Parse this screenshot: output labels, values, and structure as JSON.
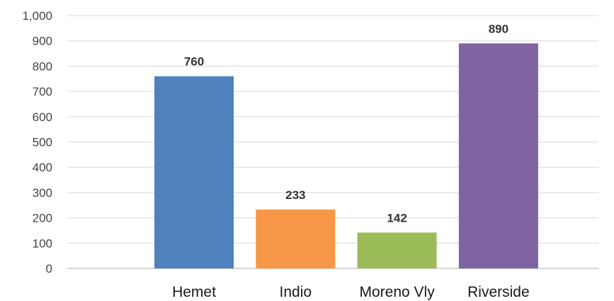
{
  "chart_data": {
    "type": "bar",
    "categories": [
      "Hemet",
      "Indio",
      "Moreno Vly",
      "Riverside"
    ],
    "values": [
      760,
      233,
      142,
      890
    ],
    "data_labels": [
      "760",
      "233",
      "142",
      "890"
    ],
    "colors": [
      "#4f81bd",
      "#f79646",
      "#9bbb59",
      "#8064a2"
    ],
    "ylim": [
      0,
      1000
    ],
    "y_ticks": [
      0,
      100,
      200,
      300,
      400,
      500,
      600,
      700,
      800,
      900,
      1000
    ],
    "y_tick_labels": [
      "0",
      "100",
      "200",
      "300",
      "400",
      "500",
      "600",
      "700",
      "800",
      "900",
      "1,000"
    ],
    "grid": true,
    "legend": "none"
  }
}
